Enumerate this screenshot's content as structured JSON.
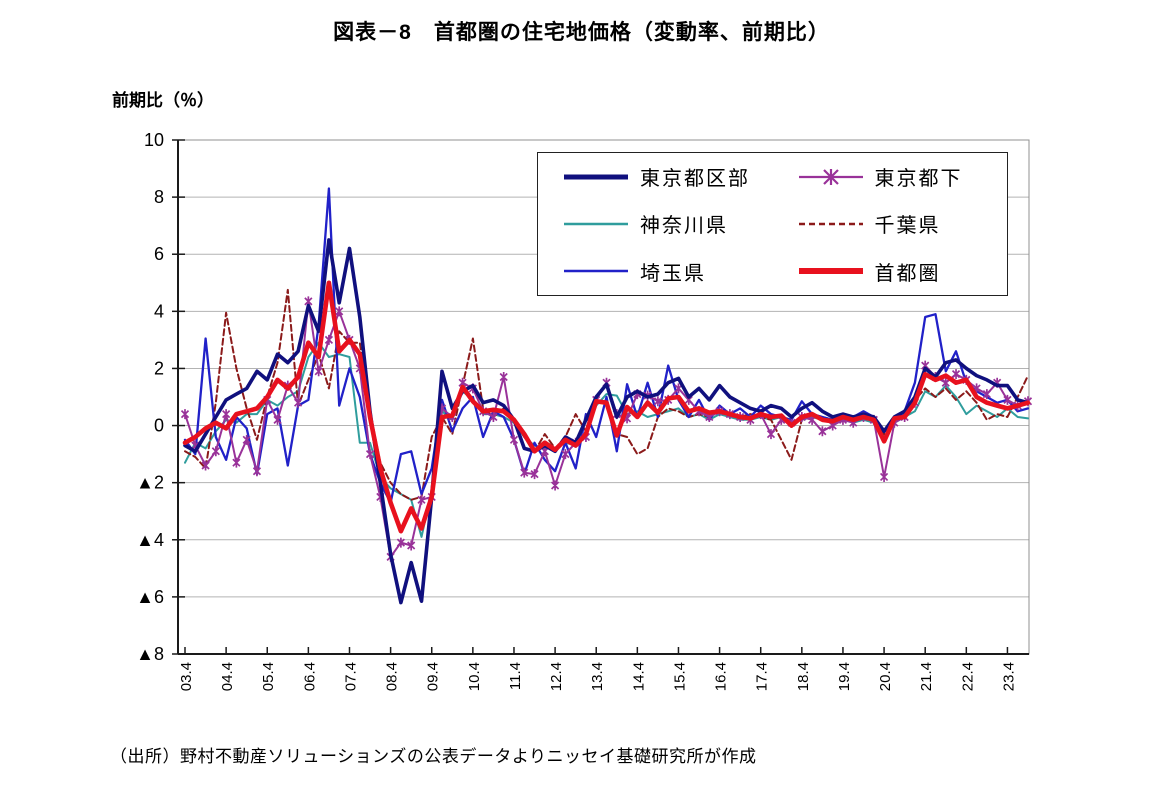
{
  "title": "図表－8　首都圏の住宅地価格（変動率、前期比）",
  "y_axis_unit": "前期比（％）",
  "source": "（出所）野村不動産ソリューションズの公表データよりニッセイ基礎研究所が作成",
  "colors": {
    "tokyo_ku": "#10107E",
    "tokyo_tama": "#993299",
    "kanagawa": "#2F9D9D",
    "chiba": "#8B1A1A",
    "saitama": "#2121C8",
    "shutoken": "#E8111E",
    "grid": "#b3b3b3",
    "axis": "#1a1a1a"
  },
  "chart_data": {
    "type": "line",
    "title": "首都圏の住宅地価格（変動率、前期比）",
    "ylabel": "前期比（％）",
    "ylim": [
      -8,
      10
    ],
    "grid": true,
    "legend_position": "top-right-inside",
    "y_ticks": [
      10,
      8,
      6,
      4,
      2,
      0,
      -2,
      -4,
      -6,
      -8
    ],
    "y_tick_labels": [
      "10",
      "8",
      "6",
      "4",
      "2",
      "0",
      "▲2",
      "▲4",
      "▲6",
      "▲8"
    ],
    "x_tick_labels": [
      "03.4",
      "04.4",
      "05.4",
      "06.4",
      "07.4",
      "08.4",
      "09.4",
      "10.4",
      "11.4",
      "12.4",
      "13.4",
      "14.4",
      "15.4",
      "16.4",
      "17.4",
      "18.4",
      "19.4",
      "20.4",
      "21.4",
      "22.4",
      "23.4"
    ],
    "x": [
      "03.4",
      "03.7",
      "03.10",
      "04.1",
      "04.4",
      "04.7",
      "04.10",
      "05.1",
      "05.4",
      "05.7",
      "05.10",
      "06.1",
      "06.4",
      "06.7",
      "06.10",
      "07.1",
      "07.4",
      "07.7",
      "07.10",
      "08.1",
      "08.4",
      "08.7",
      "08.10",
      "09.1",
      "09.4",
      "09.7",
      "09.10",
      "10.1",
      "10.4",
      "10.7",
      "10.10",
      "11.1",
      "11.4",
      "11.7",
      "11.10",
      "12.1",
      "12.4",
      "12.7",
      "12.10",
      "13.1",
      "13.4",
      "13.7",
      "13.10",
      "14.1",
      "14.4",
      "14.7",
      "14.10",
      "15.1",
      "15.4",
      "15.7",
      "15.10",
      "16.1",
      "16.4",
      "16.7",
      "16.10",
      "17.1",
      "17.4",
      "17.7",
      "17.10",
      "18.1",
      "18.4",
      "18.7",
      "18.10",
      "19.1",
      "19.4",
      "19.7",
      "19.10",
      "20.1",
      "20.4",
      "20.7",
      "20.10",
      "21.1",
      "21.4",
      "21.7",
      "21.10",
      "22.1",
      "22.4",
      "22.7",
      "22.10",
      "23.1",
      "23.4",
      "23.7",
      "23.10"
    ],
    "series": [
      {
        "name": "東京都区部",
        "key": "tokyo_ku",
        "style": "solid-thick",
        "marker": null,
        "values": [
          -0.7,
          -0.9,
          -0.3,
          0.3,
          0.9,
          1.1,
          1.3,
          1.9,
          1.6,
          2.5,
          2.2,
          2.6,
          4.2,
          3.3,
          6.5,
          4.3,
          6.2,
          3.8,
          0.5,
          -2.0,
          -4.5,
          -6.2,
          -4.8,
          -6.15,
          -2.5,
          1.9,
          0.6,
          1.2,
          1.4,
          0.8,
          0.9,
          0.7,
          0.2,
          -0.8,
          -0.9,
          -0.7,
          -0.9,
          -0.4,
          -0.6,
          0.2,
          1.0,
          1.45,
          0.3,
          1.0,
          1.2,
          1.0,
          1.1,
          1.5,
          1.65,
          1.0,
          1.3,
          0.9,
          1.4,
          1.0,
          0.8,
          0.6,
          0.5,
          0.7,
          0.6,
          0.3,
          0.6,
          0.8,
          0.5,
          0.3,
          0.4,
          0.3,
          0.4,
          0.3,
          -0.2,
          0.3,
          0.5,
          1.0,
          2.0,
          1.7,
          2.2,
          2.3,
          2.0,
          1.75,
          1.6,
          1.4,
          1.4,
          0.9,
          0.8
        ]
      },
      {
        "name": "東京都下",
        "key": "tokyo_tama",
        "style": "solid",
        "marker": "asterisk",
        "values": [
          0.4,
          -0.7,
          -1.4,
          -0.9,
          0.4,
          -1.3,
          -0.5,
          -1.6,
          0.9,
          0.2,
          1.4,
          0.8,
          4.35,
          1.9,
          3.0,
          4.0,
          3.0,
          2.0,
          -1.0,
          -2.5,
          -4.6,
          -4.1,
          -4.2,
          -2.6,
          -2.5,
          0.6,
          0.3,
          1.5,
          1.3,
          0.5,
          0.3,
          1.7,
          -0.5,
          -1.65,
          -1.7,
          -0.9,
          -2.1,
          -1.0,
          -0.6,
          -0.4,
          0.9,
          1.5,
          0.4,
          0.25,
          1.1,
          1.05,
          0.85,
          0.9,
          1.3,
          0.9,
          0.5,
          0.3,
          0.5,
          0.4,
          0.3,
          0.2,
          0.4,
          -0.3,
          0.2,
          0.1,
          0.3,
          0.2,
          -0.2,
          0.0,
          0.2,
          0.1,
          0.3,
          0.2,
          -1.8,
          0.1,
          0.3,
          0.8,
          2.1,
          1.7,
          1.5,
          1.8,
          1.6,
          1.3,
          1.1,
          1.5,
          0.9,
          0.7,
          0.85
        ]
      },
      {
        "name": "神奈川県",
        "key": "kanagawa",
        "style": "solid",
        "marker": null,
        "values": [
          -1.3,
          -0.6,
          -0.8,
          -0.2,
          0.2,
          0.1,
          0.4,
          0.4,
          0.9,
          0.7,
          1.0,
          1.2,
          2.4,
          2.9,
          2.4,
          2.5,
          2.4,
          -0.6,
          -0.6,
          -1.8,
          -2.2,
          -2.4,
          -2.6,
          -3.9,
          -2.3,
          0.5,
          0.2,
          1.2,
          0.9,
          0.4,
          0.4,
          0.3,
          0.1,
          -0.4,
          -0.7,
          -0.8,
          -0.8,
          -0.6,
          -0.7,
          -0.2,
          0.7,
          1.1,
          1.05,
          0.4,
          0.5,
          0.3,
          0.4,
          0.5,
          0.6,
          0.3,
          0.4,
          0.2,
          0.4,
          0.3,
          0.2,
          0.2,
          0.3,
          0.2,
          0.3,
          0.1,
          0.2,
          0.3,
          0.2,
          0.1,
          0.2,
          0.1,
          0.2,
          0.1,
          -0.4,
          0.1,
          0.3,
          0.5,
          1.2,
          1.0,
          1.4,
          1.0,
          0.4,
          0.7,
          0.5,
          0.3,
          0.6,
          0.3,
          0.25
        ]
      },
      {
        "name": "千葉県",
        "key": "chiba",
        "style": "dashed",
        "marker": null,
        "values": [
          -0.9,
          -1.1,
          -1.5,
          0.8,
          3.95,
          2.0,
          0.6,
          -0.5,
          1.0,
          2.2,
          4.75,
          0.7,
          1.6,
          2.5,
          1.3,
          3.3,
          2.9,
          2.9,
          0.5,
          -1.3,
          -2.0,
          -2.4,
          -2.6,
          -2.5,
          -0.4,
          0.3,
          -0.3,
          1.4,
          3.05,
          0.6,
          0.3,
          0.6,
          0.2,
          -0.4,
          -0.9,
          -0.3,
          -0.8,
          -0.4,
          0.4,
          -0.2,
          0.9,
          0.8,
          -0.3,
          -0.4,
          -1.0,
          -0.8,
          0.3,
          0.6,
          0.5,
          0.3,
          0.4,
          0.3,
          0.5,
          0.4,
          0.3,
          0.4,
          0.3,
          0.2,
          -0.5,
          -1.2,
          0.2,
          0.4,
          0.3,
          0.2,
          0.3,
          0.2,
          0.4,
          0.3,
          -0.3,
          0.2,
          0.4,
          0.9,
          1.3,
          1.0,
          1.3,
          0.9,
          1.2,
          0.8,
          0.2,
          0.4,
          0.3,
          1.0,
          1.75
        ]
      },
      {
        "name": "埼玉県",
        "key": "saitama",
        "style": "solid",
        "marker": null,
        "values": [
          -0.5,
          -1.0,
          3.05,
          -0.4,
          -1.2,
          0.3,
          -0.1,
          -1.7,
          0.4,
          0.6,
          -1.4,
          0.7,
          0.9,
          3.5,
          8.3,
          0.7,
          2.0,
          1.0,
          -1.0,
          -2.0,
          -2.7,
          -1.0,
          -0.9,
          -2.4,
          -1.5,
          0.9,
          -0.2,
          0.6,
          1.0,
          -0.4,
          0.5,
          0.3,
          -0.5,
          -1.7,
          -0.6,
          -1.2,
          -1.6,
          -0.6,
          -1.5,
          0.4,
          -0.4,
          1.0,
          -0.9,
          1.45,
          0.3,
          1.5,
          0.3,
          2.1,
          0.9,
          0.3,
          0.9,
          0.2,
          0.7,
          0.4,
          0.6,
          0.3,
          0.7,
          0.4,
          0.3,
          0.2,
          0.85,
          0.4,
          0.3,
          0.2,
          0.4,
          0.3,
          0.5,
          0.3,
          -0.2,
          0.3,
          0.5,
          1.5,
          3.8,
          3.9,
          1.9,
          2.6,
          1.5,
          1.2,
          1.0,
          0.8,
          0.9,
          0.5,
          0.6
        ]
      },
      {
        "name": "首都圏",
        "key": "shutoken",
        "style": "solid-thickest",
        "marker": null,
        "values": [
          -0.6,
          -0.4,
          -0.1,
          0.1,
          -0.1,
          0.4,
          0.5,
          0.6,
          1.0,
          1.6,
          1.3,
          1.7,
          2.9,
          2.4,
          5.0,
          2.6,
          3.0,
          2.5,
          0.3,
          -1.5,
          -2.7,
          -3.7,
          -2.9,
          -3.6,
          -2.5,
          0.3,
          0.35,
          1.35,
          0.85,
          0.5,
          0.55,
          0.5,
          0.2,
          -0.3,
          -0.9,
          -0.6,
          -0.85,
          -0.5,
          -0.7,
          -0.3,
          0.85,
          0.8,
          -0.35,
          0.65,
          0.3,
          0.8,
          0.45,
          0.95,
          1.0,
          0.5,
          0.6,
          0.45,
          0.5,
          0.4,
          0.3,
          0.25,
          0.4,
          0.3,
          0.35,
          0.0,
          0.3,
          0.4,
          0.2,
          0.15,
          0.3,
          0.2,
          0.3,
          0.2,
          -0.55,
          0.25,
          0.3,
          0.8,
          1.8,
          1.6,
          1.75,
          1.5,
          1.6,
          1.0,
          0.8,
          0.7,
          0.6,
          0.7,
          0.8
        ]
      }
    ]
  },
  "legend": {
    "items": [
      {
        "label": "東京都区部"
      },
      {
        "label": "東京都下"
      },
      {
        "label": "神奈川県"
      },
      {
        "label": "千葉県"
      },
      {
        "label": "埼玉県"
      },
      {
        "label": "首都圏"
      }
    ]
  }
}
